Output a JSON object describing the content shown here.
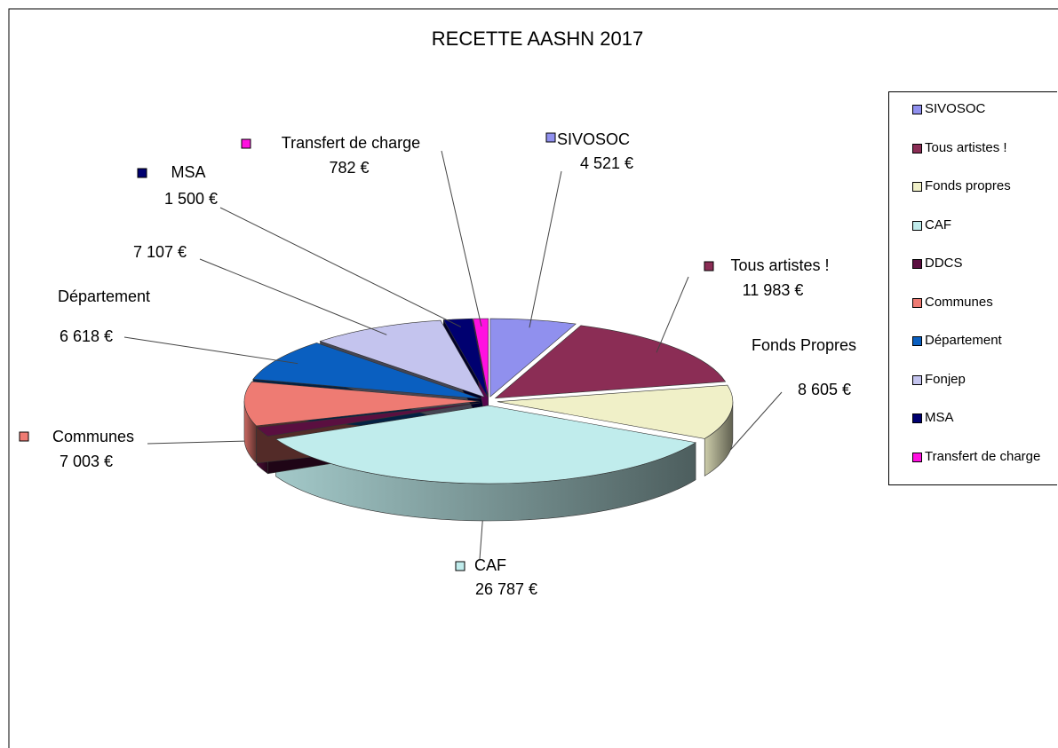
{
  "chart_data": {
    "type": "pie3d",
    "title": "RECETTE AASHN 2017",
    "categories": [
      "SIVOSOC",
      "Tous artistes !",
      "Fonds propres",
      "CAF",
      "DDCS",
      "Communes",
      "Département",
      "Fonjep",
      "MSA",
      "Transfert de charge"
    ],
    "values": [
      4521,
      11983,
      8605,
      26787,
      1500,
      7003,
      6618,
      7107,
      1500,
      782
    ],
    "value_labels": [
      "4 521 €",
      "11 983 €",
      "8 605 €",
      "26 787 €",
      null,
      "7 003 €",
      "6 618 €",
      "7 107 €",
      "1 500 €",
      "782 €"
    ],
    "slice_labels": [
      "SIVOSOC",
      "Tous artistes !",
      "Fonds Propres",
      "CAF",
      null,
      "Communes",
      "Département",
      null,
      "MSA",
      "Transfert de charge"
    ],
    "colors": [
      "#9090ee",
      "#8b2d55",
      "#f0f0c8",
      "#c0ecec",
      "#5a0f40",
      "#ee7b73",
      "#0a5fc0",
      "#c4c4ee",
      "#000070",
      "#ff10e0"
    ],
    "legend": "right"
  }
}
